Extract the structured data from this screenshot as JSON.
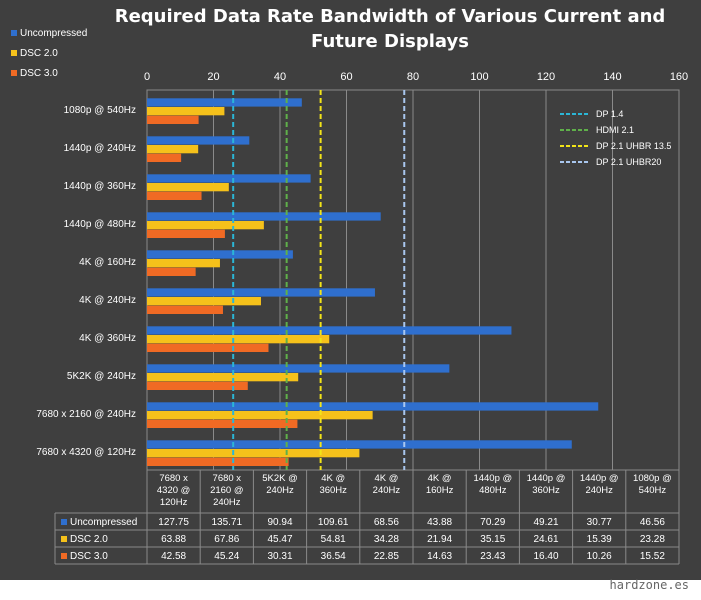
{
  "watermark": "hardzone.es",
  "chart_data": {
    "type": "bar",
    "orientation": "horizontal",
    "title_lines": [
      "Required Data Rate Bandwidth of Various Current and",
      "Future Displays"
    ],
    "xlim": [
      0,
      160
    ],
    "x_ticks": [
      0,
      20,
      40,
      60,
      80,
      100,
      120,
      140,
      160
    ],
    "grid": true,
    "legend": {
      "position": "top-left",
      "entries": [
        "Uncompressed",
        "DSC 2.0",
        "DSC 3.0"
      ]
    },
    "categories": [
      "1080p @ 540Hz",
      "1440p @ 240Hz",
      "1440p @ 360Hz",
      "1440p @ 480Hz",
      "4K @ 160Hz",
      "4K @ 240Hz",
      "4K @ 360Hz",
      "5K2K @ 240Hz",
      "7680 x 2160 @ 240Hz",
      "7680 x 4320 @ 120Hz"
    ],
    "series": [
      {
        "name": "Uncompressed",
        "color": "#2f6fce",
        "values": [
          46.56,
          30.77,
          49.21,
          70.29,
          43.88,
          68.56,
          109.61,
          90.94,
          135.71,
          127.75
        ]
      },
      {
        "name": "DSC 2.0",
        "color": "#f5c11b",
        "values": [
          23.28,
          15.39,
          24.61,
          35.15,
          21.94,
          34.28,
          54.81,
          45.47,
          67.86,
          63.88
        ]
      },
      {
        "name": "DSC 3.0",
        "color": "#f06a24",
        "values": [
          15.52,
          10.26,
          16.4,
          23.43,
          14.63,
          22.85,
          36.54,
          30.31,
          45.24,
          42.58
        ]
      }
    ],
    "reference_lines": [
      {
        "name": "DP 1.4",
        "value": 25.92,
        "color": "#2bb6d6"
      },
      {
        "name": "HDMI 2.1",
        "value": 42.0,
        "color": "#5fb04a"
      },
      {
        "name": "DP 2.1 UHBR 13.5",
        "value": 52.22,
        "color": "#f2e418"
      },
      {
        "name": "DP 2.1 UHBR20",
        "value": 77.37,
        "color": "#a9c7ef"
      }
    ],
    "table": {
      "columns": [
        [
          "7680 x",
          "4320 @",
          "120Hz"
        ],
        [
          "7680 x",
          "2160 @",
          "240Hz"
        ],
        [
          "5K2K @",
          "240Hz"
        ],
        [
          "4K @",
          "360Hz"
        ],
        [
          "4K @",
          "240Hz"
        ],
        [
          "4K @",
          "160Hz"
        ],
        [
          "1440p @",
          "480Hz"
        ],
        [
          "1440p @",
          "360Hz"
        ],
        [
          "1440p @",
          "240Hz"
        ],
        [
          "1080p @",
          "540Hz"
        ]
      ],
      "rows": [
        {
          "label": "Uncompressed",
          "values": [
            "127.75",
            "135.71",
            "90.94",
            "109.61",
            "68.56",
            "43.88",
            "70.29",
            "49.21",
            "30.77",
            "46.56"
          ]
        },
        {
          "label": "DSC 2.0",
          "values": [
            "63.88",
            "67.86",
            "45.47",
            "54.81",
            "34.28",
            "21.94",
            "35.15",
            "24.61",
            "15.39",
            "23.28"
          ]
        },
        {
          "label": "DSC 3.0",
          "values": [
            "42.58",
            "45.24",
            "30.31",
            "36.54",
            "22.85",
            "14.63",
            "23.43",
            "16.40",
            "10.26",
            "15.52"
          ]
        }
      ]
    }
  }
}
